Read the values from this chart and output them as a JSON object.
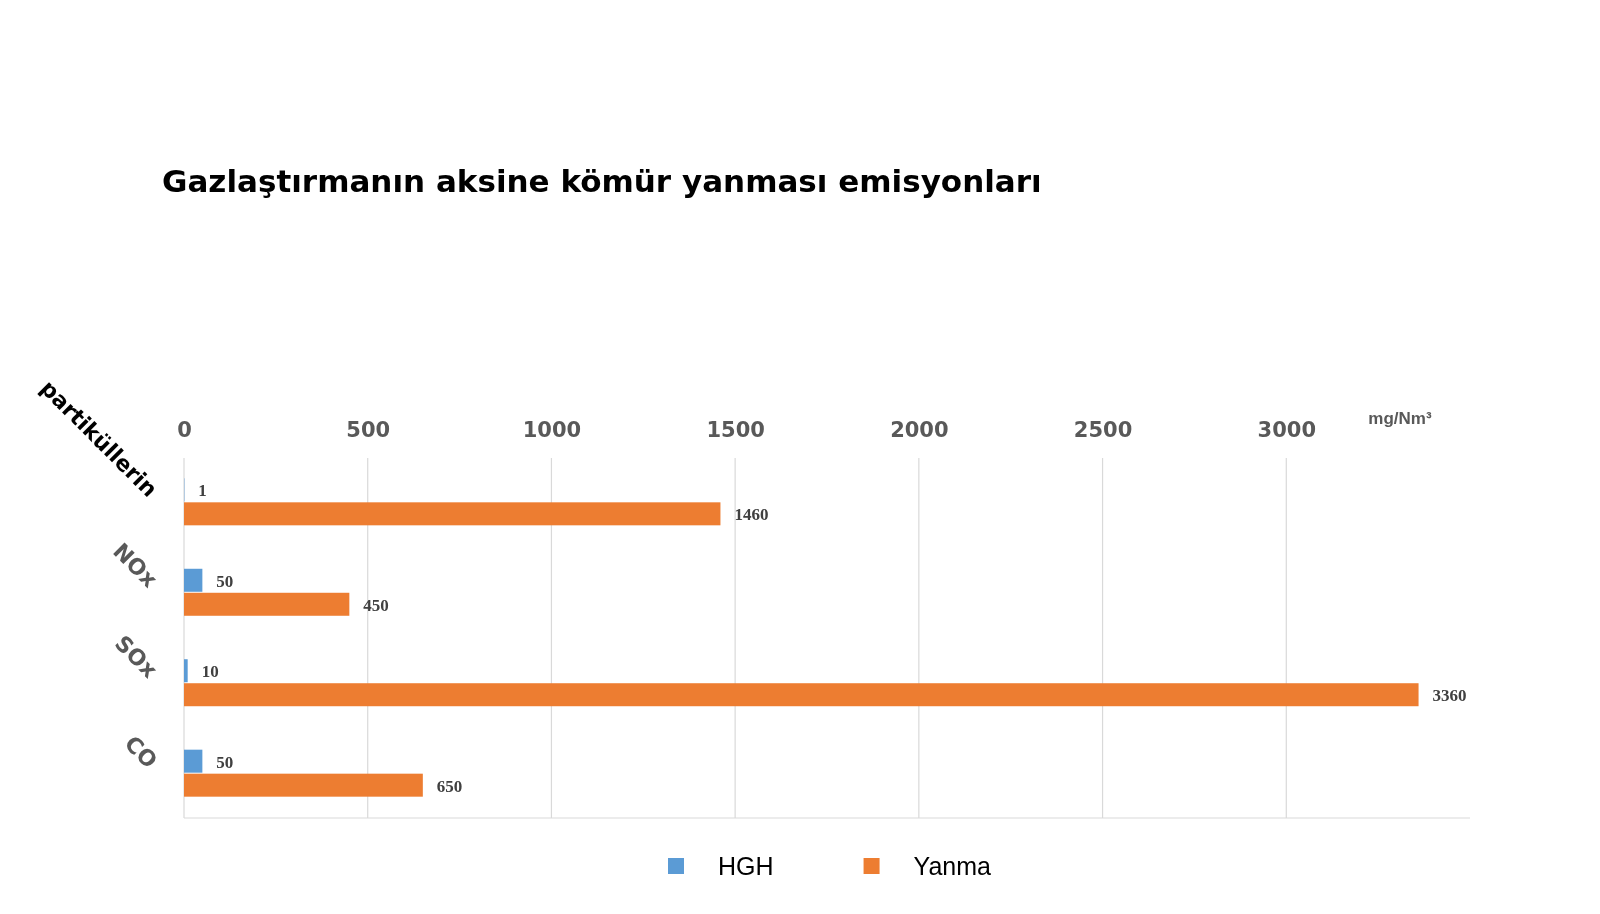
{
  "chart_data": {
    "type": "bar",
    "orientation": "horizontal",
    "title": "Gazlaştırmanın aksine kömür yanması emisyonları",
    "xlabel": "mg/Nm³",
    "categories": [
      "partiküllerin",
      "NOx",
      "SOx",
      "CO"
    ],
    "series": [
      {
        "name": "HGH",
        "color": "#5b9bd5",
        "values": [
          1,
          50,
          10,
          50
        ]
      },
      {
        "name": "Yanma",
        "color": "#ed7d31",
        "values": [
          1460,
          450,
          3360,
          650
        ]
      }
    ],
    "xlim": [
      0,
      3500
    ],
    "xticks": [
      0,
      500,
      1000,
      1500,
      2000,
      2500,
      3000
    ],
    "grid": "x",
    "data_labels": true,
    "legend": "bottom"
  }
}
